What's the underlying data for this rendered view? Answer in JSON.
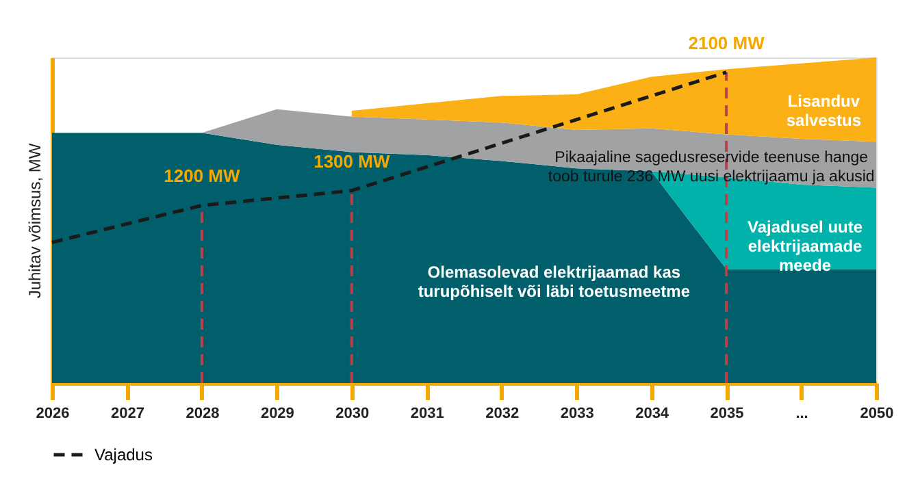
{
  "chart_data": {
    "type": "area",
    "stacked": true,
    "ylabel": "Juhitav võimsus, MW",
    "legend": "bottom",
    "grid": false,
    "ylim": [
      0,
      2200
    ],
    "categories": [
      "2026",
      "2027",
      "2028",
      "2029",
      "2030",
      "2031",
      "2032",
      "2033",
      "2034",
      "2035",
      "...",
      "2050"
    ],
    "series": [
      {
        "name": "Olemasolevad elektrijaamad kas turupõhiselt või läbi toetusmeetme",
        "color": "#005f6b",
        "values": [
          1690,
          1690,
          1690,
          1610,
          1560,
          1540,
          1500,
          1450,
          1430,
          770,
          770,
          770
        ]
      },
      {
        "name": "Vajadusel uute elektrijaamade meede",
        "color": "#00b2a9",
        "values": [
          null,
          null,
          null,
          null,
          null,
          null,
          null,
          null,
          0,
          620,
          570,
          550
        ]
      },
      {
        "name": "Pikaajaline sagedusreservide teenuse hange toob turule 236 MW uusi elektrijaamu ja akusid",
        "color": "#a0a2a4",
        "values": [
          null,
          null,
          0,
          240,
          240,
          240,
          260,
          260,
          290,
          290,
          310,
          310
        ]
      },
      {
        "name": "Lisanduv salvestus",
        "color": "#fbb116",
        "values": [
          null,
          null,
          null,
          null,
          40,
          110,
          180,
          240,
          350,
          440,
          510,
          570
        ]
      },
      {
        "name": "Vajadus",
        "type": "line",
        "line_style": "dashed",
        "color": "#1a1a1a",
        "values": [
          950,
          null,
          1200,
          null,
          1300,
          null,
          null,
          null,
          null,
          2100,
          null,
          null
        ],
        "value_labels": [
          null,
          null,
          "1200 MW",
          null,
          "1300 MW",
          null,
          null,
          null,
          null,
          "2100 MW",
          null,
          null
        ]
      }
    ],
    "ref_lines": [
      {
        "axis": "x",
        "value": "2028",
        "color": "#b8404a",
        "line_style": "dashed"
      },
      {
        "axis": "x",
        "value": "2030",
        "color": "#b8404a",
        "line_style": "dashed"
      },
      {
        "axis": "x",
        "value": "2035",
        "color": "#b8404a",
        "line_style": "dashed"
      }
    ]
  }
}
